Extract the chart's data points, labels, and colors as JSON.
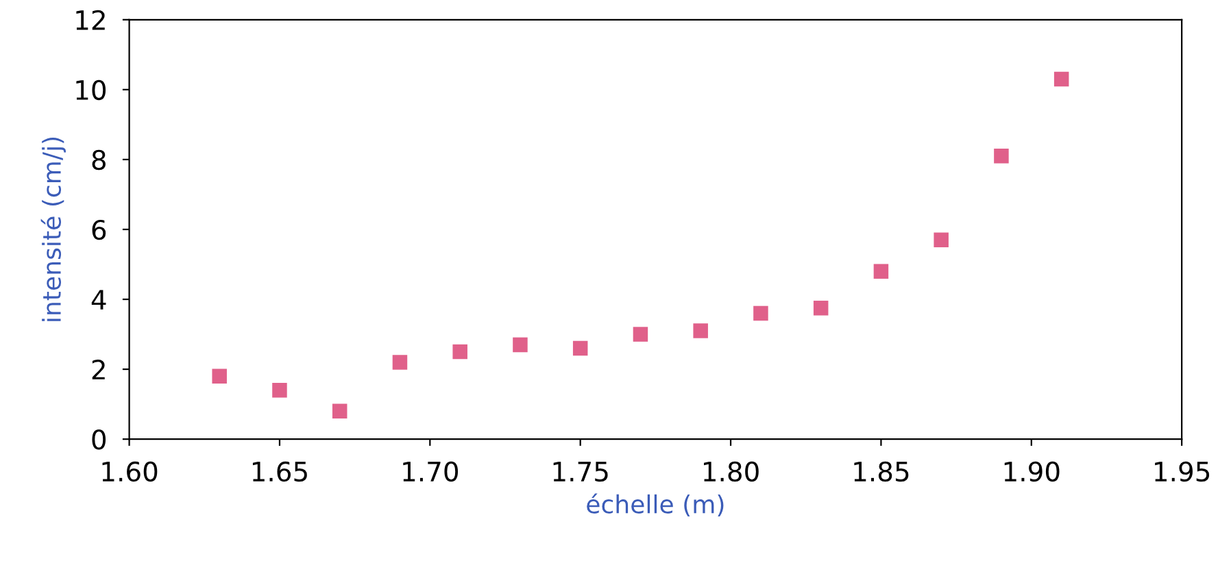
{
  "chart_data": {
    "type": "scatter",
    "xlabel": "échelle (m)",
    "ylabel": "intensité (cm/j)",
    "x": [
      1.63,
      1.65,
      1.67,
      1.69,
      1.71,
      1.73,
      1.75,
      1.77,
      1.79,
      1.81,
      1.83,
      1.85,
      1.87,
      1.89,
      1.91
    ],
    "series": [
      {
        "color": "#e0608a",
        "values": [
          1.8,
          1.4,
          0.8,
          2.2,
          2.5,
          2.7,
          2.6,
          3.0,
          3.1,
          3.6,
          3.75,
          4.8,
          5.7,
          8.1,
          10.3
        ]
      }
    ],
    "marker": "square",
    "xlim": [
      1.6,
      1.95
    ],
    "ylim": [
      0,
      12
    ],
    "xticks": [
      {
        "value": 1.6,
        "label": "1.60"
      },
      1.65,
      {
        "value": 1.7,
        "label": "1.70"
      },
      1.75,
      {
        "value": 1.8,
        "label": "1.80"
      },
      1.85,
      {
        "value": 1.9,
        "label": "1.90"
      },
      1.95
    ],
    "yticks": [
      0,
      2,
      4,
      6,
      8,
      10,
      12
    ],
    "grid": false,
    "legend": false
  }
}
